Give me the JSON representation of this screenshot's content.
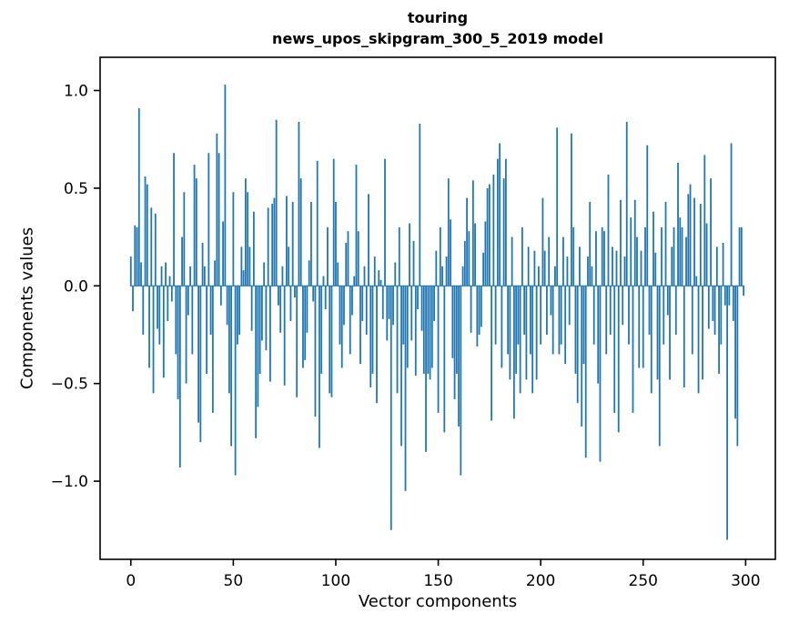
{
  "figure": {
    "title_line1": "touring",
    "title_line2": "news_upos_skipgram_300_5_2019 model",
    "xlabel": "Vector components",
    "ylabel": "Components values",
    "background_color": "#ffffff",
    "text_color": "#000000"
  },
  "chart_data": {
    "type": "bar",
    "title": "touring\nnews_upos_skipgram_300_5_2019 model",
    "xlabel": "Vector components",
    "ylabel": "Components values",
    "legend": "none",
    "grid": false,
    "bar_color": "#1f77b4",
    "axis_color": "#000000",
    "n_components": 300,
    "xlim": [
      -15,
      314.5
    ],
    "ylim": [
      -1.4,
      1.17
    ],
    "x_ticks": [
      0,
      50,
      100,
      150,
      200,
      250,
      300
    ],
    "x_tick_labels": [
      "0",
      "50",
      "100",
      "150",
      "200",
      "250",
      "300"
    ],
    "y_ticks": [
      1.0,
      0.5,
      0.0,
      -0.5,
      -1.0
    ],
    "y_tick_labels": [
      "1.0",
      "0.5",
      "0.0",
      "−0.5",
      "−1.0"
    ],
    "values": [
      0.15,
      -0.13,
      0.31,
      0.3,
      0.91,
      0.12,
      -0.25,
      0.56,
      0.52,
      -0.42,
      0.4,
      -0.55,
      0.37,
      -0.22,
      -0.3,
      0.1,
      -0.47,
      0.12,
      -0.18,
      0.05,
      -0.08,
      0.68,
      -0.35,
      -0.58,
      -0.93,
      0.25,
      0.48,
      -0.5,
      -0.15,
      0.1,
      -0.35,
      0.62,
      0.55,
      -0.7,
      -0.8,
      0.22,
      0.1,
      -0.45,
      0.68,
      -0.25,
      -0.65,
      0.13,
      0.78,
      0.68,
      -0.1,
      0.33,
      1.03,
      -0.2,
      -0.55,
      -0.82,
      0.48,
      -0.97,
      -0.3,
      -0.25,
      0.2,
      0.08,
      0.55,
      0.48,
      0.2,
      -0.23,
      0.38,
      -0.78,
      -0.62,
      -0.45,
      -0.28,
      0.12,
      -0.33,
      0.4,
      -0.49,
      0.42,
      0.45,
      0.85,
      -0.1,
      -0.24,
      0.1,
      -0.51,
      0.46,
      0.2,
      -0.18,
      0.43,
      -0.06,
      -0.57,
      0.84,
      0.55,
      -0.42,
      -0.38,
      -0.24,
      0.13,
      0.43,
      -0.08,
      -0.67,
      0.64,
      -0.83,
      -0.45,
      0.05,
      -0.12,
      0.3,
      -0.55,
      -0.57,
      0.65,
      0.43,
      0.12,
      -0.3,
      -0.42,
      -0.2,
      0.22,
      0.28,
      -0.35,
      -0.15,
      0.05,
      0.62,
      0.28,
      -0.4,
      -0.18,
      0.1,
      -0.25,
      0.47,
      -0.52,
      -0.45,
      0.15,
      -0.6,
      0.08,
      0.03,
      -0.17,
      0.65,
      -0.28,
      -0.17,
      -1.25,
      -0.2,
      0.12,
      -0.55,
      0.3,
      -0.82,
      -0.3,
      -1.05,
      -0.42,
      0.32,
      -0.28,
      0.23,
      -0.46,
      -0.12,
      0.83,
      -0.23,
      -0.45,
      -0.85,
      -0.45,
      -0.48,
      -0.42,
      -0.18,
      0.18,
      -0.65,
      0.3,
      0.1,
      -0.75,
      0.15,
      0.55,
      0.34,
      -0.37,
      -0.58,
      -0.45,
      -0.72,
      -0.97,
      0.1,
      0.23,
      0.45,
      0.28,
      -0.24,
      0.54,
      0.32,
      -0.31,
      -0.25,
      -0.21,
      0.17,
      0.33,
      0.5,
      0.52,
      -0.69,
      0.57,
      -0.3,
      0.65,
      0.73,
      -0.42,
      0.55,
      0.65,
      -0.35,
      -0.48,
      0.25,
      -0.68,
      -0.45,
      -0.3,
      -0.55,
      0.3,
      -0.25,
      -0.48,
      0.2,
      -0.35,
      -0.55,
      0.18,
      -0.48,
      0.1,
      -0.3,
      0.45,
      0.18,
      -0.25,
      0.25,
      -0.15,
      -0.35,
      0.1,
      0.81,
      -0.35,
      -0.3,
      0.25,
      -0.4,
      0.15,
      -0.2,
      0.78,
      0.3,
      -0.45,
      -0.6,
      0.2,
      -0.72,
      -0.4,
      -0.88,
      0.15,
      0.43,
      0.1,
      -0.3,
      0.28,
      -0.5,
      -0.9,
      0.3,
      0.28,
      -0.35,
      0.57,
      -0.25,
      0.2,
      -0.65,
      0.18,
      -0.75,
      0.44,
      -0.2,
      0.15,
      0.84,
      -0.3,
      0.35,
      -0.65,
      0.44,
      0.25,
      -0.42,
      0.18,
      -0.42,
      0.3,
      0.72,
      -0.25,
      -0.55,
      0.38,
      0.17,
      -0.48,
      -0.82,
      0.3,
      -0.3,
      0.43,
      -0.15,
      -0.48,
      0.2,
      0.3,
      -0.25,
      0.63,
      0.35,
      0.3,
      -0.52,
      0.25,
      0.47,
      0.52,
      -0.35,
      0.45,
      0.05,
      -0.55,
      0.42,
      -0.48,
      0.67,
      0.32,
      -0.22,
      0.55,
      -0.18,
      -0.25,
      0.2,
      -0.45,
      -0.3,
      0.22,
      -0.1,
      -1.3,
      -0.1,
      0.73,
      -0.18,
      -0.68,
      -0.82,
      0.3,
      0.3,
      -0.05
    ]
  }
}
